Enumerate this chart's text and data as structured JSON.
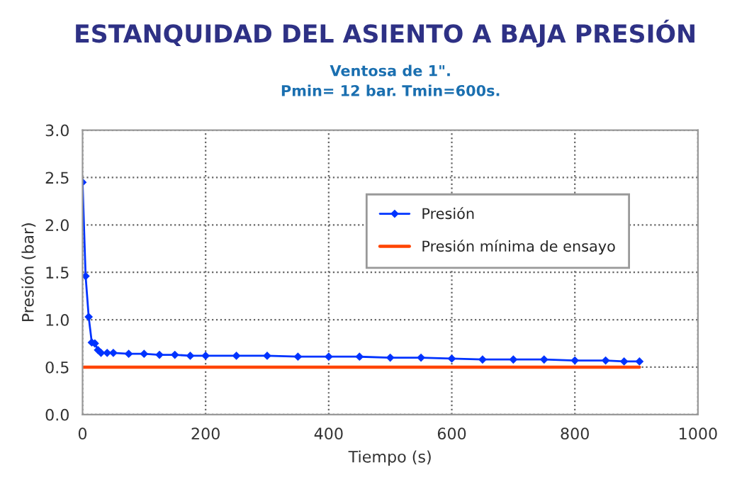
{
  "chart_data": {
    "type": "line",
    "title": "ESTANQUIDAD DEL ASIENTO A BAJA PRESIÓN",
    "subtitle": "Ventosa de 1\".\nPmin= 12 bar. Tmin=600s.",
    "xlabel": "Tiempo (s)",
    "ylabel": "Presión (bar)",
    "series": [
      {
        "name": "Presión",
        "color": "#0033ff",
        "marker": "diamond",
        "x": [
          0,
          5,
          10,
          15,
          20,
          25,
          30,
          40,
          50,
          75,
          100,
          125,
          150,
          175,
          200,
          250,
          300,
          350,
          400,
          450,
          500,
          550,
          600,
          650,
          700,
          750,
          800,
          850,
          880,
          905
        ],
        "values": [
          2.45,
          1.46,
          1.03,
          0.76,
          0.75,
          0.68,
          0.65,
          0.65,
          0.65,
          0.64,
          0.64,
          0.63,
          0.63,
          0.62,
          0.62,
          0.62,
          0.62,
          0.61,
          0.61,
          0.61,
          0.6,
          0.6,
          0.59,
          0.58,
          0.58,
          0.58,
          0.57,
          0.57,
          0.56,
          0.56
        ]
      },
      {
        "name": "Presión mínima de ensayo",
        "color": "#ff4400",
        "marker": "none",
        "x": [
          0,
          905
        ],
        "values": [
          0.5,
          0.5
        ]
      }
    ],
    "xlim": [
      0,
      1000
    ],
    "xticks": [
      0,
      200,
      400,
      600,
      800,
      1000
    ],
    "ylim": [
      0,
      3.0
    ],
    "yticks": [
      {
        "value": 0,
        "label": "0.0"
      },
      {
        "value": 0.5,
        "label": "0.5"
      },
      {
        "value": 1,
        "label": "1.0"
      },
      {
        "value": 1.5,
        "label": "1.5"
      },
      {
        "value": 2,
        "label": "2.0"
      },
      {
        "value": 2.5,
        "label": "2.5"
      },
      {
        "value": 3,
        "label": "3.0"
      }
    ],
    "grid": true,
    "legend": "top right",
    "line_style": "solid"
  }
}
